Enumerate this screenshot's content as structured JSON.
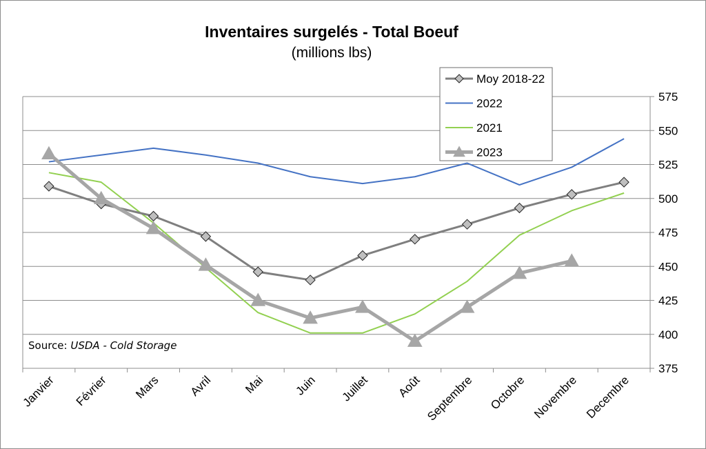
{
  "chart_data": {
    "type": "line",
    "title": "Inventaires surgelés - Total Boeuf",
    "subtitle": "(millions lbs)",
    "source_prefix": "Source:",
    "source_name": "USDA - Cold Storage",
    "categories": [
      "Janvier",
      "Février",
      "Mars",
      "Avril",
      "Mai",
      "Juin",
      "Juillet",
      "Août",
      "Septembre",
      "Octobre",
      "Novembre",
      "Decembre"
    ],
    "ylim": [
      375,
      575
    ],
    "yticks": [
      375,
      400,
      425,
      450,
      475,
      500,
      525,
      550,
      575
    ],
    "y_axis_side": "right",
    "grid": true,
    "legend_position": "top-right",
    "series": [
      {
        "name": "Moy 2018-22",
        "color": "#7f7f7f",
        "marker": "diamond",
        "values": [
          509,
          496,
          487,
          472,
          446,
          440,
          458,
          470,
          481,
          493,
          503,
          512
        ]
      },
      {
        "name": "2022",
        "color": "#4472c4",
        "marker": "none",
        "values": [
          527,
          532,
          537,
          532,
          526,
          516,
          511,
          516,
          526,
          510,
          523,
          544
        ]
      },
      {
        "name": "2021",
        "color": "#92d050",
        "marker": "none",
        "values": [
          519,
          512,
          482,
          449,
          416,
          401,
          401,
          415,
          439,
          473,
          491,
          504
        ]
      },
      {
        "name": "2023",
        "color": "#a6a6a6",
        "marker": "triangle",
        "values": [
          533,
          500,
          478,
          451,
          425,
          412,
          420,
          395,
          420,
          445,
          454,
          null
        ]
      }
    ]
  }
}
